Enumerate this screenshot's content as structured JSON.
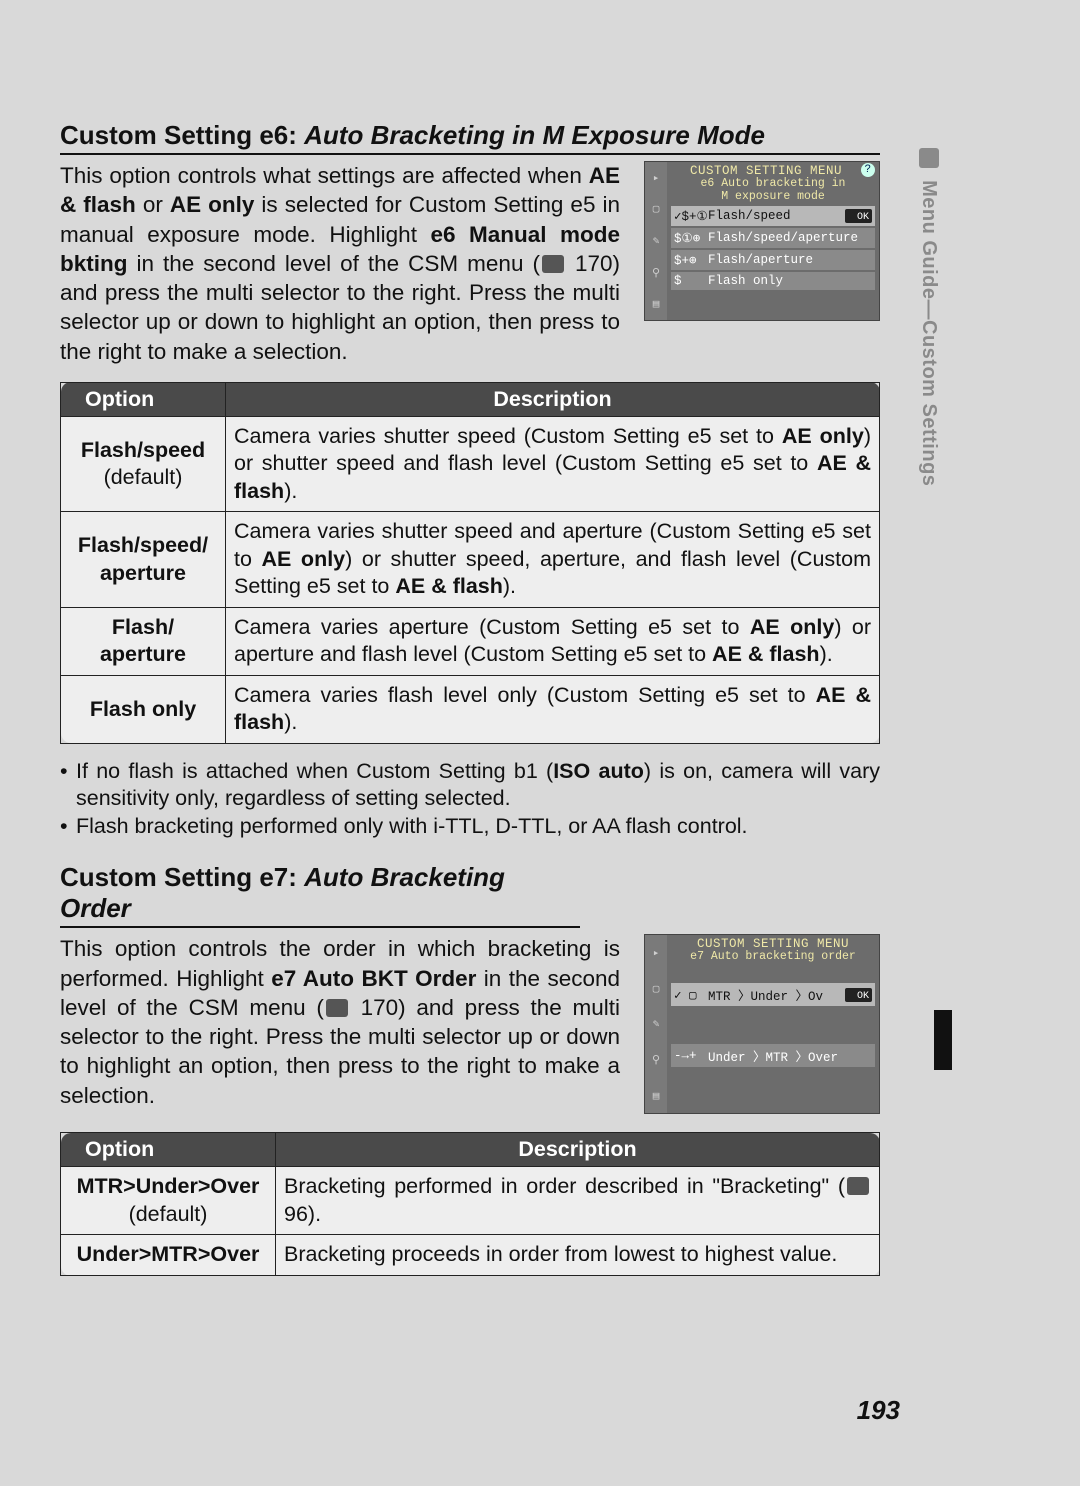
{
  "page_number": "193",
  "side_tab": {
    "icon": "pencil-icon",
    "label": "Menu Guide—Custom Settings"
  },
  "e6": {
    "heading_prefix": "Custom Setting e6: ",
    "heading_ital": "Auto Bracketing in M Exposure Mode",
    "para_html": "This option controls what settings are affected when <b>AE & flash</b> or <b>AE only</b> is selected for Custom Setting e5 in manual exposure mode. Highlight <b>e6 Manual mode bkting</b> in the second level of the CSM menu (<span class='ref-icon'></span> 170) and press the multi selector to the right. Press the multi selector up or down to highlight an option, then press to the right to make a selection.",
    "lcd": {
      "title": "CUSTOM SETTING MENU",
      "sub": "e6 Auto bracketing in<br>M exposure mode",
      "rows": [
        {
          "sel": true,
          "sym": "✓$+①",
          "label": "Flash/speed",
          "ok": true
        },
        {
          "sel": false,
          "sym": "$①⊕",
          "label": "Flash/speed/aperture"
        },
        {
          "sel": false,
          "sym": "$+⊕",
          "label": "Flash/aperture"
        },
        {
          "sel": false,
          "sym": "$",
          "label": "Flash only"
        }
      ]
    },
    "table": {
      "headers": [
        "Option",
        "Description"
      ],
      "rows": [
        {
          "opt": "Flash/speed",
          "def": "(default)",
          "desc": "Camera varies shutter speed (Custom Setting e5 set to <b>AE only</b>) or shutter speed and flash level (Custom Setting e5 set to <b>AE & flash</b>)."
        },
        {
          "opt": "Flash/speed/<br>aperture",
          "desc": "Camera varies shutter speed and aperture (Custom Setting e5 set to <b>AE only</b>) or shutter speed, aperture, and flash level (Custom Setting e5 set to <b>AE & flash</b>)."
        },
        {
          "opt": "Flash/<br>aperture",
          "desc": "Camera varies aperture (Custom Setting e5 set to <b>AE only</b>) or aperture and flash level (Custom Setting e5 set to <b>AE & flash</b>)."
        },
        {
          "opt": "Flash only",
          "desc": "Camera varies flash level only (Custom Setting e5 set to <b>AE & flash</b>)."
        }
      ]
    },
    "notes": [
      "If no flash is attached when Custom Setting b1 (<b>ISO auto</b>) is on, camera will vary sensitivity only, regardless of setting selected.",
      "Flash bracketing performed only with i-TTL, D-TTL, or AA flash control."
    ]
  },
  "e7": {
    "heading_prefix": "Custom Setting e7: ",
    "heading_ital": "Auto Bracketing Order",
    "para_html": "This option controls the order in which bracketing is performed. Highlight <b>e7 Auto BKT Order</b> in the second level of the CSM menu (<span class='ref-icon'></span> 170) and press the multi selector to the right. Press the multi selector up or down to highlight an option, then press to the right to make a selection.",
    "lcd": {
      "title": "CUSTOM SETTING MENU",
      "sub": "e7 Auto bracketing order",
      "rows": [
        {
          "sel": true,
          "sym": "✓ ▢",
          "label": "MTR 〉Under 〉Ov",
          "ok": true
        },
        {
          "sel": false,
          "sym": "-→+",
          "label": "Under 〉MTR 〉Over"
        }
      ]
    },
    "table": {
      "headers": [
        "Option",
        "Description"
      ],
      "rows": [
        {
          "opt": "MTR&gt;Under&gt;Over",
          "def": "(default)",
          "desc": "Bracketing performed in order described in \"Bracketing\" (<span class='ref-icon'></span> 96)."
        },
        {
          "opt": "Under&gt;MTR&gt;Over",
          "desc": "Bracketing proceeds in order from lowest to highest value."
        }
      ]
    }
  },
  "style": {
    "bg": "#d9d9d9",
    "table_header_bg": "#4a4a4a",
    "table_header_fg": "#ffffff",
    "table_cell_bg": "#eeeeee",
    "border": "#222222",
    "lcd_bg": "#6c6c6c",
    "lcd_hl": "#b8b8b8"
  }
}
